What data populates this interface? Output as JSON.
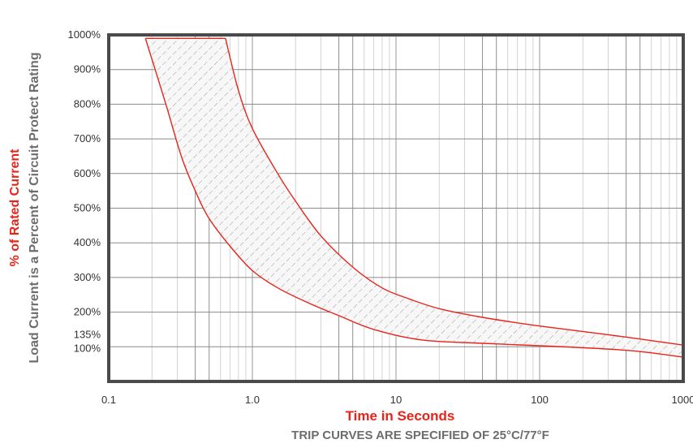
{
  "chart_data": {
    "type": "area",
    "title": "",
    "xlabel": "Time in Seconds",
    "ylabel": "% of Rated Current",
    "ylabel_secondary": "Load Current is a Percent of Circuit Protect Rating",
    "note": "TRIP CURVES ARE SPECIFIED OF 25°C/77°F",
    "x_scale": "log",
    "xlim": [
      0.1,
      1000
    ],
    "ylim": [
      0,
      1000
    ],
    "x_ticks": [
      {
        "value": 0.1,
        "label": "0.1"
      },
      {
        "value": 1,
        "label": "1.0"
      },
      {
        "value": 10,
        "label": "10"
      },
      {
        "value": 100,
        "label": "100"
      },
      {
        "value": 1000,
        "label": "1000"
      }
    ],
    "y_ticks": [
      {
        "value": 100,
        "label": "100%"
      },
      {
        "value": 135,
        "label": "135%"
      },
      {
        "value": 200,
        "label": "200%"
      },
      {
        "value": 300,
        "label": "300%"
      },
      {
        "value": 400,
        "label": "400%"
      },
      {
        "value": 500,
        "label": "500%"
      },
      {
        "value": 600,
        "label": "600%"
      },
      {
        "value": 700,
        "label": "700%"
      },
      {
        "value": 800,
        "label": "800%"
      },
      {
        "value": 900,
        "label": "900%"
      },
      {
        "value": 1000,
        "label": "1000%"
      }
    ],
    "grid": true,
    "band": {
      "min_trip_curve": [
        {
          "x": 0.18,
          "y": 990
        },
        {
          "x": 0.25,
          "y": 800
        },
        {
          "x": 0.32,
          "y": 650
        },
        {
          "x": 0.4,
          "y": 550
        },
        {
          "x": 0.5,
          "y": 470
        },
        {
          "x": 0.7,
          "y": 390
        },
        {
          "x": 1.0,
          "y": 320
        },
        {
          "x": 1.5,
          "y": 270
        },
        {
          "x": 2.5,
          "y": 225
        },
        {
          "x": 4.0,
          "y": 190
        },
        {
          "x": 7.0,
          "y": 150
        },
        {
          "x": 15,
          "y": 120
        },
        {
          "x": 40,
          "y": 110
        },
        {
          "x": 100,
          "y": 103
        },
        {
          "x": 400,
          "y": 90
        },
        {
          "x": 1000,
          "y": 70
        }
      ],
      "max_trip_curve": [
        {
          "x": 0.65,
          "y": 990
        },
        {
          "x": 0.8,
          "y": 840
        },
        {
          "x": 1.0,
          "y": 730
        },
        {
          "x": 1.5,
          "y": 600
        },
        {
          "x": 2.0,
          "y": 520
        },
        {
          "x": 3.0,
          "y": 420
        },
        {
          "x": 5.0,
          "y": 330
        },
        {
          "x": 8.0,
          "y": 270
        },
        {
          "x": 12,
          "y": 240
        },
        {
          "x": 20,
          "y": 210
        },
        {
          "x": 40,
          "y": 185
        },
        {
          "x": 100,
          "y": 160
        },
        {
          "x": 300,
          "y": 135
        },
        {
          "x": 1000,
          "y": 105
        }
      ],
      "top_y": 990,
      "line_color": "#e8231a",
      "hatch_color": "#9a9a9a"
    }
  }
}
